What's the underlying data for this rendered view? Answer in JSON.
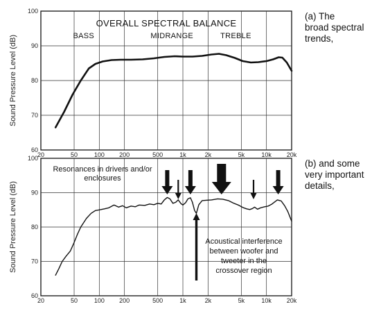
{
  "colors": {
    "line": "#111111",
    "grid": "#333333",
    "frame": "#111111",
    "arrow": "#111111"
  },
  "chart_data": [
    {
      "type": "line",
      "title": "OVERALL SPECTRAL BALANCE",
      "ylabel": "Sound Pressure Level (dB)",
      "xscale": "log",
      "xlim": [
        20,
        20000
      ],
      "ylim": [
        60,
        100
      ],
      "grid": true,
      "x_ticks": [
        20,
        50,
        100,
        200,
        500,
        1000,
        2000,
        5000,
        10000,
        20000
      ],
      "x_tick_labels": [
        "20",
        "50",
        "100",
        "200",
        "500",
        "1k",
        "2k",
        "5k",
        "10k",
        "20k"
      ],
      "y_ticks": [
        60,
        70,
        80,
        90,
        100
      ],
      "y_tick_labels": [
        "60",
        "70",
        "80",
        "90",
        "100"
      ],
      "bands": [
        {
          "label": "BASS",
          "x": 65
        },
        {
          "label": "MIDRANGE",
          "x": 740
        },
        {
          "label": "TREBLE",
          "x": 4300
        }
      ],
      "series": [
        {
          "x": [
            30,
            38,
            48,
            60,
            75,
            90,
            110,
            140,
            180,
            240,
            330,
            450,
            600,
            800,
            1000,
            1300,
            1700,
            2200,
            2700,
            3300,
            4200,
            5200,
            6500,
            8000,
            10000,
            12000,
            14000,
            15500,
            17500,
            20000
          ],
          "values": [
            66.5,
            71,
            76,
            80,
            83.5,
            84.8,
            85.5,
            85.9,
            86,
            86,
            86.1,
            86.4,
            86.8,
            87,
            86.9,
            86.9,
            87.1,
            87.5,
            87.7,
            87.3,
            86.5,
            85.6,
            85.2,
            85.3,
            85.6,
            86.1,
            86.7,
            86.6,
            85.2,
            82.8
          ]
        }
      ],
      "side_note": [
        "(a) The",
        "broad spectral",
        "trends,"
      ]
    },
    {
      "type": "line",
      "ylabel": "Sound Pressure Level (dB)",
      "xscale": "log",
      "xlim": [
        20,
        20000
      ],
      "ylim": [
        60,
        100
      ],
      "grid": true,
      "x_ticks": [
        20,
        50,
        100,
        200,
        500,
        1000,
        2000,
        5000,
        10000,
        20000
      ],
      "x_tick_labels": [
        "20",
        "50",
        "100",
        "200",
        "500",
        "1k",
        "2k",
        "5k",
        "10k",
        "20k"
      ],
      "y_ticks": [
        60,
        70,
        80,
        90,
        100
      ],
      "y_tick_labels": [
        "60",
        "70",
        "80",
        "90",
        "100"
      ],
      "series": [
        {
          "x": [
            30,
            33,
            36,
            40,
            45,
            50,
            55,
            60,
            70,
            80,
            90,
            100,
            115,
            130,
            150,
            170,
            190,
            210,
            240,
            270,
            300,
            350,
            400,
            450,
            500,
            550,
            600,
            650,
            700,
            760,
            820,
            880,
            950,
            1000,
            1080,
            1150,
            1230,
            1300,
            1380,
            1450,
            1550,
            1700,
            1900,
            2200,
            2600,
            3000,
            3500,
            4000,
            4600,
            5200,
            5800,
            6300,
            6800,
            7200,
            7800,
            8500,
            9500,
            10500,
            11500,
            12500,
            13500,
            15000,
            16500,
            18000,
            20000
          ],
          "values": [
            66,
            68,
            70,
            71.5,
            73,
            75.5,
            78,
            80,
            82.5,
            84,
            84.8,
            85,
            85.3,
            85.6,
            86.4,
            85.8,
            86.2,
            85.6,
            86.1,
            85.9,
            86.4,
            86.3,
            86.7,
            86.5,
            86.9,
            86.7,
            87.9,
            88.6,
            88.2,
            86.9,
            87.2,
            87.9,
            86.8,
            86.4,
            87.1,
            88.2,
            88.5,
            87.2,
            84.8,
            84,
            86.5,
            87.7,
            87.8,
            87.9,
            88.2,
            88.1,
            87.7,
            87,
            86.4,
            85.7,
            85.3,
            85.1,
            85.4,
            85.8,
            85.2,
            85.6,
            85.9,
            86.1,
            86.6,
            87.3,
            87.9,
            87.6,
            86.2,
            84.5,
            81.7
          ]
        }
      ],
      "arrows_down": [
        {
          "x": 650,
          "size": "medium"
        },
        {
          "x": 880,
          "size": "small"
        },
        {
          "x": 1230,
          "size": "medium"
        },
        {
          "x": 2900,
          "size": "large"
        },
        {
          "x": 7000,
          "size": "small"
        },
        {
          "x": 13800,
          "size": "medium"
        }
      ],
      "arrow_up": {
        "x": 1450
      },
      "annotations": {
        "resonance": [
          "Resonances in drivers and/or",
          "enclosures"
        ],
        "interference": [
          "Acoustical interference",
          "between woofer and",
          "tweeter in the",
          "crossover region"
        ]
      },
      "side_note": [
        "(b) and some",
        "very important",
        "details,"
      ]
    }
  ]
}
